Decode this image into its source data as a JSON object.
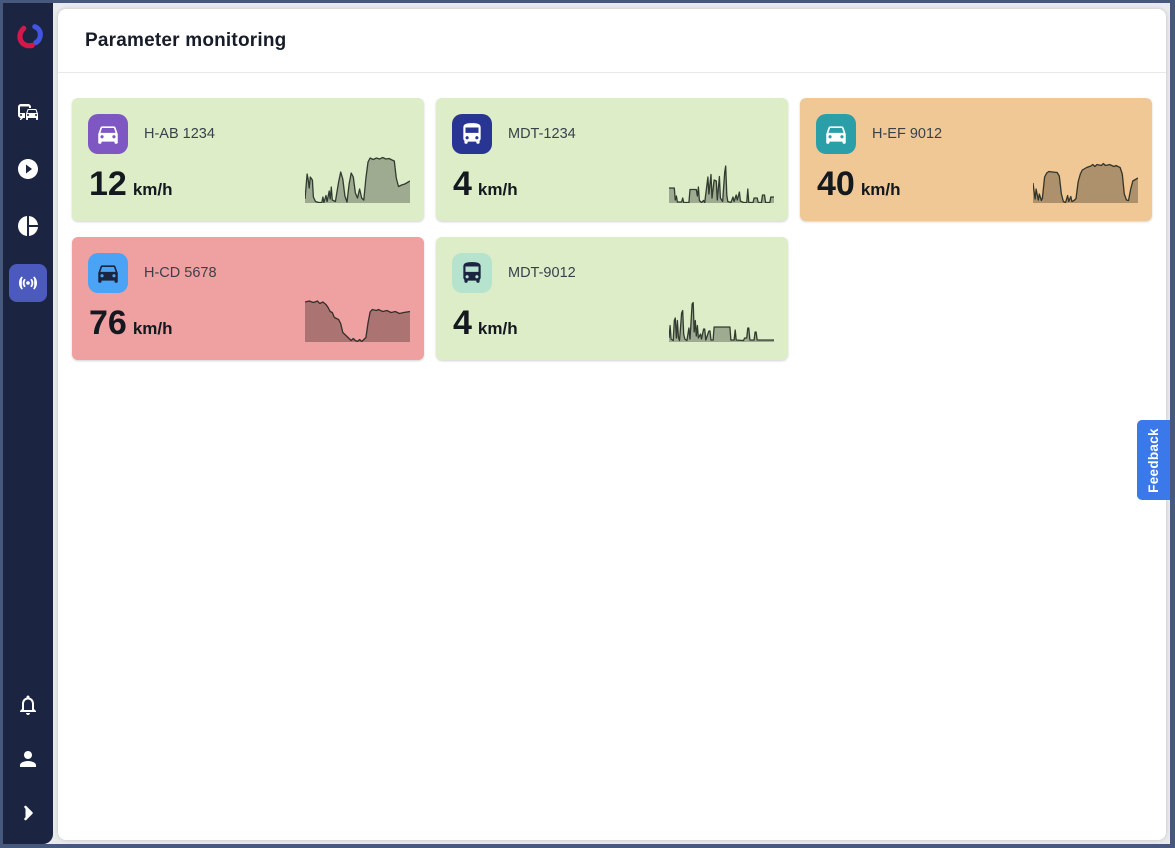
{
  "colors": {
    "window_border": "#46587b",
    "page_bg": "#e9eaec",
    "sidebar_bg": "#1b2541",
    "active_item_bg": "#4c59bd",
    "feedback_bg": "#3b78ea",
    "card_ok_bg": "#dcedc8",
    "card_warn_bg": "#f0c896",
    "card_alert_bg": "#efa0a0",
    "spark_fill": "rgba(0,0,0,0.28)",
    "spark_stroke": "rgba(18,28,22,0.82)"
  },
  "sidebar": {
    "logo": "brand-swirl-logo",
    "items": [
      {
        "icon": "vehicles-commute-icon",
        "active": false
      },
      {
        "icon": "play-circle-icon",
        "active": false
      },
      {
        "icon": "pie-chart-icon",
        "active": false
      },
      {
        "icon": "broadcast-monitoring-icon",
        "active": true
      }
    ],
    "bottom_items": [
      {
        "icon": "bell-icon"
      },
      {
        "icon": "user-icon"
      },
      {
        "icon": "chevron-right-icon"
      }
    ]
  },
  "header": {
    "title": "Parameter monitoring"
  },
  "feedback": {
    "label": "Feedback"
  },
  "cards": [
    {
      "plate": "H-AB 1234",
      "value": "12",
      "unit": "km/h",
      "bg": "#dcedc8",
      "icon": "car",
      "icon_bg": "#7e57c2",
      "icon_color": "#ffffff",
      "spark": [
        [
          0,
          8
        ],
        [
          2,
          58
        ],
        [
          3,
          48
        ],
        [
          4,
          30
        ],
        [
          5,
          52
        ],
        [
          7,
          46
        ],
        [
          8,
          12
        ],
        [
          10,
          3
        ],
        [
          13,
          1
        ],
        [
          16,
          1
        ],
        [
          17,
          12
        ],
        [
          18,
          1
        ],
        [
          20,
          15
        ],
        [
          21,
          3
        ],
        [
          23,
          24
        ],
        [
          24,
          8
        ],
        [
          25,
          32
        ],
        [
          26,
          6
        ],
        [
          29,
          3
        ],
        [
          32,
          42
        ],
        [
          34,
          62
        ],
        [
          36,
          48
        ],
        [
          38,
          14
        ],
        [
          40,
          2
        ],
        [
          42,
          38
        ],
        [
          44,
          60
        ],
        [
          46,
          52
        ],
        [
          48,
          20
        ],
        [
          50,
          10
        ],
        [
          52,
          28
        ],
        [
          54,
          10
        ],
        [
          56,
          6
        ],
        [
          58,
          50
        ],
        [
          60,
          82
        ],
        [
          62,
          90
        ],
        [
          65,
          87
        ],
        [
          68,
          90
        ],
        [
          71,
          88
        ],
        [
          74,
          91
        ],
        [
          77,
          88
        ],
        [
          80,
          89
        ],
        [
          83,
          86
        ],
        [
          85,
          84
        ],
        [
          87,
          50
        ],
        [
          89,
          33
        ],
        [
          92,
          36
        ],
        [
          95,
          38
        ],
        [
          100,
          44
        ]
      ]
    },
    {
      "plate": "MDT-1234",
      "value": "4",
      "unit": "km/h",
      "bg": "#dcedc8",
      "icon": "bus",
      "icon_bg": "#283593",
      "icon_color": "#ffffff",
      "spark": [
        [
          0,
          30
        ],
        [
          5,
          30
        ],
        [
          6,
          6
        ],
        [
          7,
          14
        ],
        [
          8,
          2
        ],
        [
          12,
          2
        ],
        [
          13,
          10
        ],
        [
          14,
          1
        ],
        [
          19,
          1
        ],
        [
          20,
          27
        ],
        [
          26,
          27
        ],
        [
          27,
          14
        ],
        [
          28,
          32
        ],
        [
          29,
          5
        ],
        [
          31,
          1
        ],
        [
          33,
          5
        ],
        [
          34,
          1
        ],
        [
          37,
          52
        ],
        [
          38,
          18
        ],
        [
          40,
          57
        ],
        [
          41,
          10
        ],
        [
          43,
          46
        ],
        [
          45,
          44
        ],
        [
          46,
          6
        ],
        [
          48,
          53
        ],
        [
          49,
          10
        ],
        [
          51,
          3
        ],
        [
          53,
          62
        ],
        [
          54,
          74
        ],
        [
          55,
          16
        ],
        [
          56,
          3
        ],
        [
          59,
          1
        ],
        [
          61,
          12
        ],
        [
          62,
          3
        ],
        [
          64,
          16
        ],
        [
          65,
          6
        ],
        [
          67,
          22
        ],
        [
          68,
          4
        ],
        [
          71,
          1
        ],
        [
          74,
          1
        ],
        [
          75,
          28
        ],
        [
          76,
          1
        ],
        [
          80,
          1
        ],
        [
          81,
          10
        ],
        [
          84,
          10
        ],
        [
          85,
          1
        ],
        [
          88,
          1
        ],
        [
          89,
          16
        ],
        [
          91,
          16
        ],
        [
          92,
          1
        ],
        [
          96,
          1
        ],
        [
          97,
          12
        ],
        [
          100,
          12
        ]
      ]
    },
    {
      "plate": "H-EF 9012",
      "value": "40",
      "unit": "km/h",
      "bg": "#f0c896",
      "icon": "car",
      "icon_bg": "#2b9fa8",
      "icon_color": "#ffffff",
      "spark": [
        [
          0,
          40
        ],
        [
          2,
          8
        ],
        [
          3,
          28
        ],
        [
          5,
          6
        ],
        [
          6,
          18
        ],
        [
          8,
          5
        ],
        [
          9,
          10
        ],
        [
          11,
          52
        ],
        [
          13,
          60
        ],
        [
          15,
          63
        ],
        [
          19,
          62
        ],
        [
          23,
          61
        ],
        [
          25,
          54
        ],
        [
          27,
          18
        ],
        [
          29,
          3
        ],
        [
          31,
          1
        ],
        [
          33,
          15
        ],
        [
          34,
          3
        ],
        [
          36,
          13
        ],
        [
          37,
          3
        ],
        [
          39,
          5
        ],
        [
          41,
          9
        ],
        [
          43,
          42
        ],
        [
          45,
          58
        ],
        [
          47,
          66
        ],
        [
          51,
          71
        ],
        [
          55,
          74
        ],
        [
          57,
          77
        ],
        [
          59,
          73
        ],
        [
          61,
          77
        ],
        [
          65,
          75
        ],
        [
          67,
          79
        ],
        [
          69,
          75
        ],
        [
          73,
          77
        ],
        [
          77,
          73
        ],
        [
          79,
          75
        ],
        [
          83,
          71
        ],
        [
          85,
          58
        ],
        [
          87,
          18
        ],
        [
          89,
          6
        ],
        [
          91,
          5
        ],
        [
          93,
          28
        ],
        [
          95,
          44
        ],
        [
          100,
          50
        ]
      ]
    },
    {
      "plate": "H-CD 5678",
      "value": "76",
      "unit": "km/h",
      "bg": "#efa0a0",
      "icon": "car",
      "icon_bg": "#4ba3f5",
      "icon_color": "#1b2541",
      "spark": [
        [
          0,
          80
        ],
        [
          4,
          82
        ],
        [
          8,
          79
        ],
        [
          12,
          82
        ],
        [
          14,
          77
        ],
        [
          17,
          80
        ],
        [
          20,
          75
        ],
        [
          22,
          69
        ],
        [
          24,
          61
        ],
        [
          26,
          59
        ],
        [
          28,
          49
        ],
        [
          32,
          45
        ],
        [
          34,
          37
        ],
        [
          36,
          19
        ],
        [
          40,
          11
        ],
        [
          44,
          3
        ],
        [
          46,
          7
        ],
        [
          48,
          3
        ],
        [
          50,
          1
        ],
        [
          52,
          5
        ],
        [
          54,
          1
        ],
        [
          58,
          9
        ],
        [
          60,
          38
        ],
        [
          62,
          60
        ],
        [
          64,
          65
        ],
        [
          68,
          63
        ],
        [
          70,
          65
        ],
        [
          74,
          61
        ],
        [
          78,
          63
        ],
        [
          82,
          59
        ],
        [
          86,
          61
        ],
        [
          90,
          57
        ],
        [
          94,
          59
        ],
        [
          100,
          61
        ]
      ]
    },
    {
      "plate": "MDT-9012",
      "value": "4",
      "unit": "km/h",
      "bg": "#dcedc8",
      "icon": "bus",
      "icon_bg": "#b5e3cd",
      "icon_color": "#1b2541",
      "spark": [
        [
          0,
          8
        ],
        [
          1,
          33
        ],
        [
          2,
          6
        ],
        [
          4,
          3
        ],
        [
          5,
          43
        ],
        [
          6,
          48
        ],
        [
          7,
          8
        ],
        [
          8,
          43
        ],
        [
          9,
          10
        ],
        [
          10,
          3
        ],
        [
          12,
          58
        ],
        [
          13,
          63
        ],
        [
          14,
          16
        ],
        [
          15,
          6
        ],
        [
          17,
          3
        ],
        [
          19,
          28
        ],
        [
          20,
          6
        ],
        [
          22,
          76
        ],
        [
          23,
          79
        ],
        [
          24,
          20
        ],
        [
          25,
          43
        ],
        [
          26,
          12
        ],
        [
          27,
          33
        ],
        [
          28,
          8
        ],
        [
          30,
          16
        ],
        [
          31,
          6
        ],
        [
          33,
          26
        ],
        [
          34,
          26
        ],
        [
          35,
          4
        ],
        [
          38,
          22
        ],
        [
          39,
          22
        ],
        [
          40,
          4
        ],
        [
          42,
          4
        ],
        [
          43,
          30
        ],
        [
          58,
          30
        ],
        [
          59,
          4
        ],
        [
          62,
          4
        ],
        [
          63,
          24
        ],
        [
          64,
          4
        ],
        [
          71,
          3
        ],
        [
          72,
          8
        ],
        [
          74,
          8
        ],
        [
          75,
          28
        ],
        [
          76,
          28
        ],
        [
          77,
          4
        ],
        [
          81,
          4
        ],
        [
          82,
          20
        ],
        [
          83,
          20
        ],
        [
          84,
          4
        ],
        [
          100,
          4
        ]
      ]
    }
  ]
}
